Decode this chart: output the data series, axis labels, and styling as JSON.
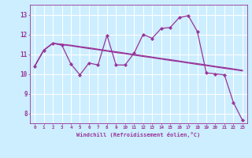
{
  "xlabel": "Windchill (Refroidissement éolien,°C)",
  "x_ticks": [
    0,
    1,
    2,
    3,
    4,
    5,
    6,
    7,
    8,
    9,
    10,
    11,
    12,
    13,
    14,
    15,
    16,
    17,
    18,
    19,
    20,
    21,
    22,
    23
  ],
  "ylim": [
    7.5,
    13.5
  ],
  "yticks": [
    8,
    9,
    10,
    11,
    12,
    13
  ],
  "line1_x": [
    0,
    1,
    2,
    3,
    4,
    5,
    6,
    7,
    8,
    9,
    10,
    11,
    12,
    13,
    14,
    15,
    16,
    17,
    18,
    19,
    20,
    21,
    22,
    23
  ],
  "line1_y": [
    10.4,
    11.2,
    11.55,
    11.45,
    10.5,
    9.95,
    10.55,
    10.45,
    11.95,
    10.45,
    10.45,
    11.05,
    12.0,
    11.8,
    12.3,
    12.35,
    12.85,
    12.95,
    12.15,
    10.05,
    10.0,
    9.95,
    8.55,
    7.65
  ],
  "line2_x": [
    0,
    1,
    2,
    3,
    4,
    5,
    6,
    7,
    8,
    9,
    10,
    11,
    12,
    13,
    14,
    15,
    16,
    17,
    18,
    19,
    20,
    21,
    22,
    23
  ],
  "line2_y": [
    10.4,
    11.2,
    11.55,
    11.5,
    11.45,
    11.38,
    11.32,
    11.25,
    11.18,
    11.12,
    11.05,
    10.98,
    10.92,
    10.85,
    10.78,
    10.72,
    10.65,
    10.58,
    10.52,
    10.45,
    10.38,
    10.32,
    10.25,
    10.18
  ],
  "line3_x": [
    0,
    1,
    2,
    3,
    4,
    5,
    6,
    7,
    8,
    9,
    10,
    11,
    12,
    13,
    14,
    15,
    16,
    17,
    18,
    19,
    20,
    21,
    22,
    23
  ],
  "line3_y": [
    10.4,
    11.2,
    11.55,
    11.48,
    11.42,
    11.35,
    11.28,
    11.22,
    11.15,
    11.08,
    11.02,
    10.95,
    10.88,
    10.82,
    10.75,
    10.68,
    10.62,
    10.55,
    10.48,
    10.42,
    10.35,
    10.28,
    10.22,
    10.15
  ],
  "color": "#993399",
  "background_color": "#cceeff",
  "grid_color": "#ffffff",
  "font_color": "#993399",
  "markersize": 2.2,
  "linewidth": 0.9
}
